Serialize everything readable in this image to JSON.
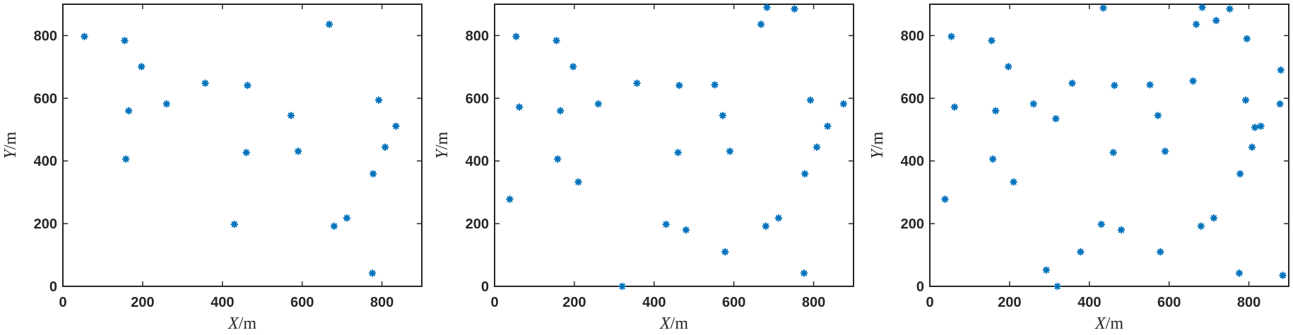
{
  "colors": {
    "marker": "#0072bd",
    "axis": "#262626"
  },
  "marker_symbol": "asterisk",
  "chart_data": [
    {
      "type": "scatter",
      "xlabel_var": "X",
      "xlabel_unit": "/m",
      "ylabel_var": "Y",
      "ylabel_unit": "/m",
      "xlim": [
        0,
        900
      ],
      "ylim": [
        0,
        900
      ],
      "xticks": [
        0,
        200,
        400,
        600,
        800
      ],
      "yticks": [
        0,
        200,
        400,
        600,
        800
      ],
      "grid": false,
      "series": [
        {
          "x": [
            54,
            155,
            158,
            165,
            197,
            260,
            357,
            430,
            460,
            463,
            572,
            590,
            668,
            680,
            712,
            776,
            778,
            792,
            808,
            835
          ],
          "y": [
            797,
            784,
            406,
            560,
            701,
            582,
            648,
            198,
            427,
            641,
            545,
            431,
            836,
            192,
            218,
            42,
            359,
            594,
            444,
            511
          ]
        }
      ]
    },
    {
      "type": "scatter",
      "xlabel_var": "X",
      "xlabel_unit": "/m",
      "ylabel_var": "Y",
      "ylabel_unit": "/m",
      "xlim": [
        0,
        900
      ],
      "ylim": [
        0,
        900
      ],
      "xticks": [
        0,
        200,
        400,
        600,
        800
      ],
      "yticks": [
        0,
        200,
        400,
        600,
        800
      ],
      "grid": false,
      "series": [
        {
          "x": [
            38,
            54,
            62,
            155,
            158,
            165,
            197,
            210,
            260,
            320,
            357,
            430,
            460,
            463,
            480,
            552,
            572,
            578,
            590,
            668,
            680,
            683,
            712,
            752,
            776,
            778,
            792,
            808,
            835,
            875
          ],
          "y": [
            278,
            797,
            572,
            784,
            406,
            560,
            701,
            333,
            582,
            0,
            648,
            198,
            427,
            641,
            180,
            643,
            545,
            110,
            431,
            836,
            192,
            890,
            218,
            885,
            42,
            359,
            594,
            444,
            511,
            582
          ]
        }
      ]
    },
    {
      "type": "scatter",
      "xlabel_var": "X",
      "xlabel_unit": "/m",
      "ylabel_var": "Y",
      "ylabel_unit": "/m",
      "xlim": [
        0,
        900
      ],
      "ylim": [
        0,
        900
      ],
      "xticks": [
        0,
        200,
        400,
        600,
        800
      ],
      "yticks": [
        0,
        200,
        400,
        600,
        800
      ],
      "grid": false,
      "series": [
        {
          "x": [
            38,
            54,
            62,
            155,
            158,
            165,
            197,
            210,
            260,
            292,
            316,
            320,
            357,
            378,
            430,
            435,
            460,
            463,
            480,
            552,
            572,
            578,
            590,
            660,
            668,
            680,
            683,
            712,
            718,
            752,
            776,
            778,
            792,
            795,
            808,
            815,
            830,
            878,
            880,
            885
          ],
          "y": [
            278,
            797,
            572,
            784,
            406,
            560,
            701,
            333,
            582,
            52,
            535,
            0,
            648,
            110,
            198,
            888,
            427,
            641,
            180,
            643,
            545,
            110,
            431,
            655,
            836,
            192,
            890,
            218,
            848,
            885,
            42,
            359,
            594,
            790,
            444,
            507,
            511,
            582,
            690,
            35
          ]
        }
      ]
    }
  ]
}
